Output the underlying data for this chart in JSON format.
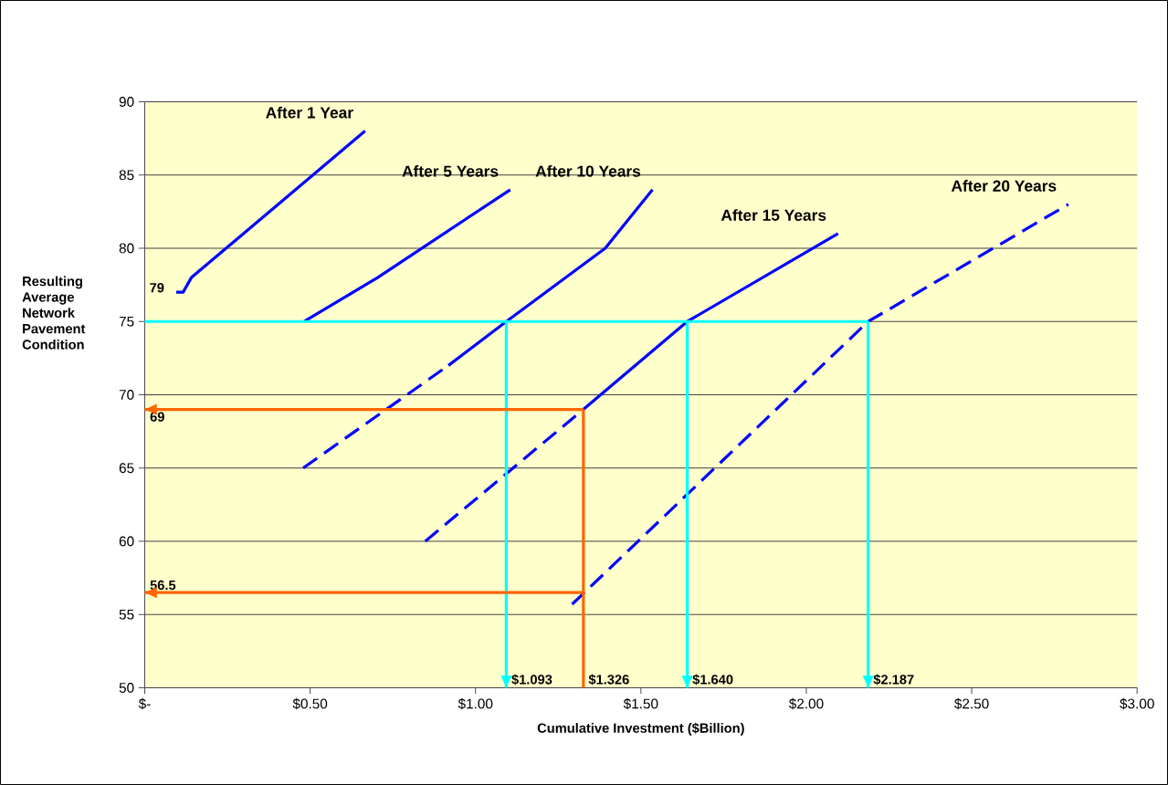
{
  "chart_data": {
    "type": "line",
    "xlabel": "Cumulative Investment ($Billion)",
    "ylabel": "Resulting Average Network Pavement Condition",
    "xlim": [
      0,
      3
    ],
    "ylim": [
      50,
      90
    ],
    "xticks": [
      {
        "value": 0,
        "label": "$-"
      },
      {
        "value": 0.5,
        "label": "$0.50"
      },
      {
        "value": 1,
        "label": "$1.00"
      },
      {
        "value": 1.5,
        "label": "$1.50"
      },
      {
        "value": 2,
        "label": "$2.00"
      },
      {
        "value": 2.5,
        "label": "$2.50"
      },
      {
        "value": 3,
        "label": "$3.00"
      }
    ],
    "yticks": [
      50,
      55,
      60,
      65,
      70,
      75,
      80,
      85,
      90
    ],
    "grid": "y",
    "series": [
      {
        "name": "After 1 Year",
        "color": "#0000ff",
        "line_style": "solid",
        "x": [
          0.095,
          0.116,
          0.141,
          0.666
        ],
        "values": [
          77,
          77,
          78,
          88
        ]
      },
      {
        "name": "After 5 Years",
        "color": "#0000ff",
        "line_style": "solid",
        "x": [
          0.482,
          0.704,
          1.105
        ],
        "values": [
          75,
          78,
          84
        ]
      },
      {
        "color": "#0000ff",
        "line_style": "dashed",
        "x": [
          0.479,
          0.918
        ],
        "values": [
          65,
          72
        ]
      },
      {
        "name": "After 10 Years",
        "color": "#0000ff",
        "line_style": "solid",
        "x": [
          0.918,
          1.093,
          1.392,
          1.535
        ],
        "values": [
          72,
          75,
          80,
          84
        ]
      },
      {
        "color": "#0000ff",
        "line_style": "dashed",
        "x": [
          0.848,
          1.326
        ],
        "values": [
          60,
          69
        ]
      },
      {
        "name": "After 15 Years",
        "color": "#0000ff",
        "line_style": "solid",
        "x": [
          1.326,
          1.64,
          2.096
        ],
        "values": [
          69,
          75,
          81
        ]
      },
      {
        "name": "After 20 Years",
        "color": "#0000ff",
        "line_style": "dashed",
        "x": [
          1.292,
          2.187,
          2.792
        ],
        "values": [
          55.7,
          75,
          83
        ]
      },
      {
        "color": "#00ffff",
        "line_style": "solid",
        "x": [
          0,
          2.187
        ],
        "values": [
          75,
          75
        ]
      },
      {
        "color": "#00ffff",
        "line_style": "solid",
        "x": [
          1.093,
          1.093
        ],
        "values": [
          75,
          50
        ]
      },
      {
        "color": "#00ffff",
        "line_style": "solid",
        "x": [
          1.64,
          1.64
        ],
        "values": [
          75,
          50
        ]
      },
      {
        "color": "#00ffff",
        "line_style": "solid",
        "x": [
          2.187,
          2.187
        ],
        "values": [
          75,
          50
        ]
      },
      {
        "color": "#ff6600",
        "line_style": "solid",
        "x": [
          1.326,
          0
        ],
        "values": [
          69,
          69
        ]
      },
      {
        "color": "#ff6600",
        "line_style": "solid",
        "x": [
          1.326,
          0
        ],
        "values": [
          56.5,
          56.5
        ]
      },
      {
        "color": "#ff6600",
        "line_style": "solid",
        "x": [
          1.326,
          1.326
        ],
        "values": [
          50,
          69
        ]
      }
    ],
    "annotations": [
      "79",
      {
        "text": "69",
        "x": 0,
        "y": 69
      },
      {
        "text": "56.5",
        "x": 0,
        "y": 56.5
      },
      {
        "text": "$1.093",
        "x": 1.093,
        "y": 50
      },
      {
        "text": "$1.326",
        "x": 1.326,
        "y": 50
      },
      {
        "text": "$1.640",
        "x": 1.64,
        "y": 50
      },
      {
        "text": "$2.187",
        "x": 2.187,
        "y": 50
      }
    ]
  }
}
